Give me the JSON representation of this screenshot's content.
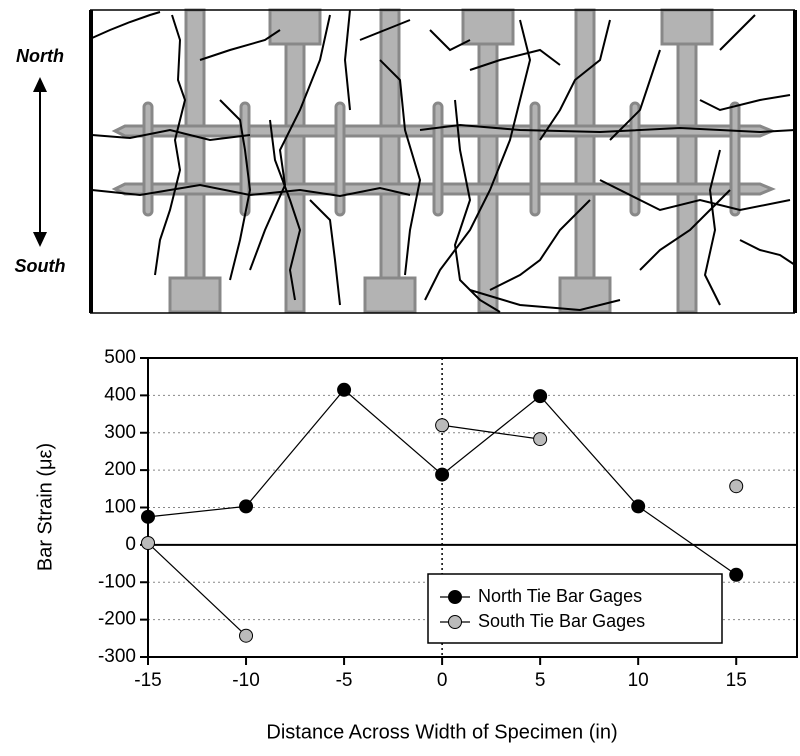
{
  "diagram": {
    "north_label": "North",
    "south_label": "South"
  },
  "chart_data": {
    "type": "line",
    "x_label": "Distance Across Width of Specimen (in)",
    "y_label": "Bar Strain (με)",
    "x": [
      -15,
      -10,
      -5,
      0,
      5,
      10,
      15
    ],
    "series": [
      {
        "name": "North Tie Bar Gages",
        "color": "#000000",
        "values": [
          75,
          103,
          415,
          188,
          398,
          103,
          -80
        ]
      },
      {
        "name": "South Tie Bar Gages",
        "color": "#bbbbbb",
        "values": [
          5,
          -243,
          null,
          320,
          283,
          null,
          157
        ]
      }
    ],
    "xlim": [
      -15,
      18.1
    ],
    "ylim": [
      -300,
      500
    ],
    "xticks": [
      -15,
      -10,
      -5,
      0,
      5,
      10,
      15
    ],
    "yticks": [
      -300,
      -200,
      -100,
      0,
      100,
      200,
      300,
      400,
      500
    ],
    "grid": true,
    "zero_lines": true,
    "legend": "lower right"
  }
}
